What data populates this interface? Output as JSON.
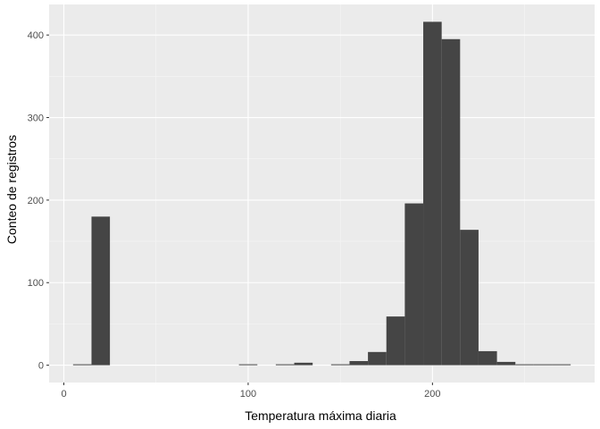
{
  "chart_data": {
    "type": "bar",
    "subtype": "histogram",
    "title": "",
    "xlabel": "Temperatura máxima diaria",
    "ylabel": "Conteo de registros",
    "bin_width": 10,
    "bins": [
      {
        "x0": 5,
        "x1": 15,
        "count": 1
      },
      {
        "x0": 15,
        "x1": 25,
        "count": 180
      },
      {
        "x0": 95,
        "x1": 105,
        "count": 1
      },
      {
        "x0": 115,
        "x1": 125,
        "count": 1
      },
      {
        "x0": 125,
        "x1": 135,
        "count": 3
      },
      {
        "x0": 145,
        "x1": 155,
        "count": 1
      },
      {
        "x0": 155,
        "x1": 165,
        "count": 5
      },
      {
        "x0": 165,
        "x1": 175,
        "count": 16
      },
      {
        "x0": 175,
        "x1": 185,
        "count": 59
      },
      {
        "x0": 185,
        "x1": 195,
        "count": 196
      },
      {
        "x0": 195,
        "x1": 205,
        "count": 416
      },
      {
        "x0": 205,
        "x1": 215,
        "count": 395
      },
      {
        "x0": 215,
        "x1": 225,
        "count": 164
      },
      {
        "x0": 225,
        "x1": 235,
        "count": 17
      },
      {
        "x0": 235,
        "x1": 245,
        "count": 4
      },
      {
        "x0": 245,
        "x1": 255,
        "count": 1
      },
      {
        "x0": 255,
        "x1": 265,
        "count": 1
      },
      {
        "x0": 265,
        "x1": 275,
        "count": 1
      }
    ],
    "xlim": [
      -8,
      288
    ],
    "ylim": [
      -21,
      437
    ],
    "xticks": [
      0,
      100,
      200
    ],
    "xminor": [
      50,
      150,
      250
    ],
    "yticks": [
      0,
      100,
      200,
      300,
      400
    ],
    "yminor": [
      50,
      150,
      250,
      350
    ],
    "grid": true,
    "colors": {
      "bar": "#454545",
      "panel": "#ebebeb",
      "grid_major": "#ffffff",
      "grid_minor": "#f5f5f5"
    }
  }
}
